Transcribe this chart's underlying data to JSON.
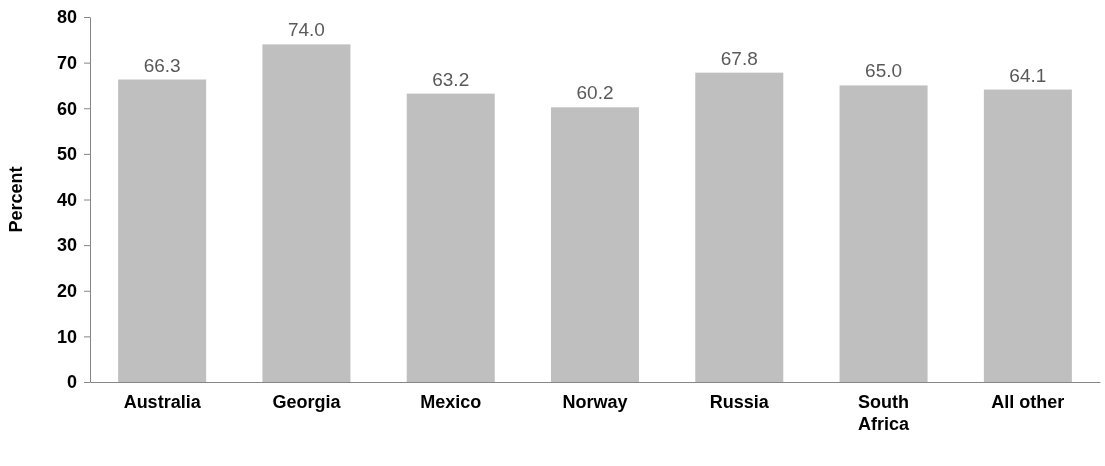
{
  "chart_data": {
    "type": "bar",
    "ylabel": "Percent",
    "categories": [
      "Australia",
      "Georgia",
      "Mexico",
      "Norway",
      "Russia",
      "South Africa",
      "All other"
    ],
    "values": [
      66.3,
      74.0,
      63.2,
      60.2,
      67.8,
      65.0,
      64.1
    ],
    "color": "#bfbfbf",
    "ylim": [
      0,
      80
    ],
    "yticks": [
      0,
      10,
      20,
      30,
      40,
      50,
      60,
      70,
      80
    ],
    "value_labels": [
      "66.3",
      "74.0",
      "63.2",
      "60.2",
      "67.8",
      "65.0",
      "64.1"
    ],
    "grid": false
  }
}
